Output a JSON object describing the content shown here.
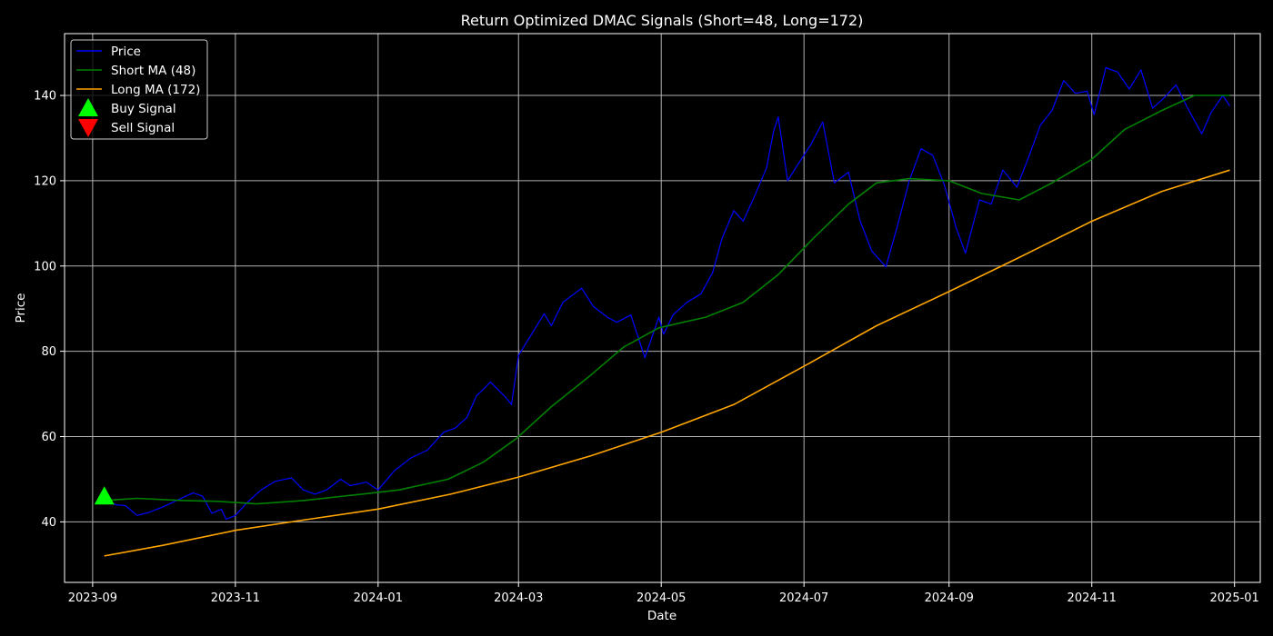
{
  "chart_data": {
    "type": "line",
    "title": "Return Optimized DMAC Signals (Short=48, Long=172)",
    "xlabel": "Date",
    "ylabel": "Price",
    "x_range": [
      "2023-08-20",
      "2025-01-12"
    ],
    "ylim": [
      25.8,
      154.5
    ],
    "grid": true,
    "legend_position": "top-left",
    "x_ticks": [
      "2023-09-01",
      "2023-11-01",
      "2024-01-01",
      "2024-03-01",
      "2024-05-01",
      "2024-07-01",
      "2024-09-01",
      "2024-11-01",
      "2025-01-01"
    ],
    "x_tick_labels": [
      "2023-09",
      "2023-11",
      "2024-01",
      "2024-03",
      "2024-05",
      "2024-07",
      "2024-09",
      "2024-11",
      "2025-01"
    ],
    "y_ticks": [
      40,
      60,
      80,
      100,
      120,
      140
    ],
    "y_tick_labels": [
      "40",
      "60",
      "80",
      "100",
      "120",
      "140"
    ],
    "series": [
      {
        "name": "Price",
        "color": "#0000ff",
        "points": [
          [
            "2023-09-06",
            45.0
          ],
          [
            "2023-09-11",
            44.0
          ],
          [
            "2023-09-15",
            43.8
          ],
          [
            "2023-09-20",
            41.5
          ],
          [
            "2023-09-25",
            42.2
          ],
          [
            "2023-10-01",
            43.5
          ],
          [
            "2023-10-05",
            44.5
          ],
          [
            "2023-10-10",
            45.8
          ],
          [
            "2023-10-14",
            46.8
          ],
          [
            "2023-10-18",
            46.0
          ],
          [
            "2023-10-22",
            42.0
          ],
          [
            "2023-10-26",
            43.0
          ],
          [
            "2023-10-28",
            40.6
          ],
          [
            "2023-11-01",
            41.5
          ],
          [
            "2023-11-06",
            44.5
          ],
          [
            "2023-11-12",
            47.5
          ],
          [
            "2023-11-18",
            49.5
          ],
          [
            "2023-11-25",
            50.3
          ],
          [
            "2023-11-30",
            47.5
          ],
          [
            "2023-12-05",
            46.5
          ],
          [
            "2023-12-10",
            47.5
          ],
          [
            "2023-12-16",
            50.0
          ],
          [
            "2023-12-20",
            48.5
          ],
          [
            "2023-12-27",
            49.3
          ],
          [
            "2024-01-01",
            47.5
          ],
          [
            "2024-01-08",
            52.0
          ],
          [
            "2024-01-15",
            55.0
          ],
          [
            "2024-01-22",
            56.8
          ],
          [
            "2024-01-29",
            61.0
          ],
          [
            "2024-02-03",
            62.0
          ],
          [
            "2024-02-08",
            64.5
          ],
          [
            "2024-02-12",
            69.5
          ],
          [
            "2024-02-18",
            72.8
          ],
          [
            "2024-02-24",
            69.5
          ],
          [
            "2024-02-27",
            67.5
          ],
          [
            "2024-03-01",
            79.0
          ],
          [
            "2024-03-06",
            83.5
          ],
          [
            "2024-03-12",
            88.8
          ],
          [
            "2024-03-15",
            86.0
          ],
          [
            "2024-03-20",
            91.5
          ],
          [
            "2024-03-28",
            94.8
          ],
          [
            "2024-04-02",
            90.5
          ],
          [
            "2024-04-08",
            88.0
          ],
          [
            "2024-04-12",
            86.8
          ],
          [
            "2024-04-18",
            88.5
          ],
          [
            "2024-04-24",
            78.5
          ],
          [
            "2024-04-30",
            88.0
          ],
          [
            "2024-05-02",
            84.0
          ],
          [
            "2024-05-06",
            88.5
          ],
          [
            "2024-05-12",
            91.5
          ],
          [
            "2024-05-18",
            93.5
          ],
          [
            "2024-05-23",
            98.5
          ],
          [
            "2024-05-27",
            106.5
          ],
          [
            "2024-06-01",
            113.0
          ],
          [
            "2024-06-05",
            110.5
          ],
          [
            "2024-06-10",
            116.5
          ],
          [
            "2024-06-15",
            123.0
          ],
          [
            "2024-06-18",
            131.5
          ],
          [
            "2024-06-20",
            135.0
          ],
          [
            "2024-06-24",
            120.0
          ],
          [
            "2024-06-28",
            123.5
          ],
          [
            "2024-07-04",
            128.5
          ],
          [
            "2024-07-09",
            133.8
          ],
          [
            "2024-07-14",
            119.5
          ],
          [
            "2024-07-20",
            122.0
          ],
          [
            "2024-07-25",
            110.5
          ],
          [
            "2024-07-30",
            103.5
          ],
          [
            "2024-08-05",
            99.8
          ],
          [
            "2024-08-10",
            109.5
          ],
          [
            "2024-08-15",
            120.0
          ],
          [
            "2024-08-20",
            127.5
          ],
          [
            "2024-08-25",
            126.0
          ],
          [
            "2024-08-30",
            119.0
          ],
          [
            "2024-09-04",
            109.0
          ],
          [
            "2024-09-08",
            103.0
          ],
          [
            "2024-09-14",
            115.5
          ],
          [
            "2024-09-19",
            114.5
          ],
          [
            "2024-09-24",
            122.5
          ],
          [
            "2024-09-30",
            118.5
          ],
          [
            "2024-10-05",
            125.5
          ],
          [
            "2024-10-10",
            133.0
          ],
          [
            "2024-10-15",
            136.5
          ],
          [
            "2024-10-20",
            143.5
          ],
          [
            "2024-10-25",
            140.5
          ],
          [
            "2024-10-30",
            141.0
          ],
          [
            "2024-11-02",
            135.5
          ],
          [
            "2024-11-07",
            146.5
          ],
          [
            "2024-11-12",
            145.5
          ],
          [
            "2024-11-17",
            141.5
          ],
          [
            "2024-11-22",
            146.0
          ],
          [
            "2024-11-27",
            137.0
          ],
          [
            "2024-12-02",
            139.5
          ],
          [
            "2024-12-07",
            142.5
          ],
          [
            "2024-12-12",
            137.0
          ],
          [
            "2024-12-18",
            131.0
          ],
          [
            "2024-12-22",
            136.0
          ],
          [
            "2024-12-27",
            140.0
          ],
          [
            "2024-12-30",
            137.5
          ]
        ]
      },
      {
        "name": "Short MA (48)",
        "color": "#008000",
        "points": [
          [
            "2023-09-06",
            45.0
          ],
          [
            "2023-09-20",
            45.5
          ],
          [
            "2023-10-10",
            45.0
          ],
          [
            "2023-10-25",
            44.8
          ],
          [
            "2023-11-10",
            44.2
          ],
          [
            "2023-11-30",
            45.0
          ],
          [
            "2023-12-25",
            46.5
          ],
          [
            "2024-01-10",
            47.5
          ],
          [
            "2024-01-31",
            50.0
          ],
          [
            "2024-02-15",
            54.0
          ],
          [
            "2024-02-29",
            59.5
          ],
          [
            "2024-03-15",
            67.0
          ],
          [
            "2024-03-31",
            74.0
          ],
          [
            "2024-04-15",
            81.0
          ],
          [
            "2024-04-30",
            85.5
          ],
          [
            "2024-05-20",
            88.0
          ],
          [
            "2024-06-05",
            91.5
          ],
          [
            "2024-06-20",
            98.0
          ],
          [
            "2024-07-05",
            106.5
          ],
          [
            "2024-07-20",
            114.5
          ],
          [
            "2024-08-01",
            119.5
          ],
          [
            "2024-08-15",
            120.5
          ],
          [
            "2024-09-01",
            120.0
          ],
          [
            "2024-09-15",
            117.0
          ],
          [
            "2024-10-01",
            115.5
          ],
          [
            "2024-10-15",
            119.5
          ],
          [
            "2024-11-01",
            125.0
          ],
          [
            "2024-11-15",
            132.0
          ],
          [
            "2024-12-01",
            136.5
          ],
          [
            "2024-12-15",
            140.0
          ],
          [
            "2024-12-30",
            140.0
          ]
        ]
      },
      {
        "name": "Long MA (172)",
        "color": "#ffa500",
        "points": [
          [
            "2023-09-06",
            32.0
          ],
          [
            "2023-10-01",
            34.5
          ],
          [
            "2023-11-01",
            38.0
          ],
          [
            "2023-12-01",
            40.5
          ],
          [
            "2024-01-01",
            43.0
          ],
          [
            "2024-02-01",
            46.5
          ],
          [
            "2024-03-01",
            50.5
          ],
          [
            "2024-04-01",
            55.5
          ],
          [
            "2024-05-01",
            61.0
          ],
          [
            "2024-06-01",
            67.5
          ],
          [
            "2024-07-01",
            76.5
          ],
          [
            "2024-08-01",
            86.0
          ],
          [
            "2024-09-01",
            94.0
          ],
          [
            "2024-10-01",
            102.0
          ],
          [
            "2024-11-01",
            110.5
          ],
          [
            "2024-12-01",
            117.5
          ],
          [
            "2024-12-30",
            122.5
          ]
        ]
      }
    ],
    "buy_signals": [
      [
        "2023-09-06",
        46.0
      ]
    ],
    "sell_signals": [],
    "legend": [
      {
        "label": "Price",
        "kind": "line",
        "color": "#0000ff"
      },
      {
        "label": "Short MA (48)",
        "kind": "line",
        "color": "#008000"
      },
      {
        "label": "Long MA (172)",
        "kind": "line",
        "color": "#ffa500"
      },
      {
        "label": "Buy Signal",
        "kind": "triangle-up",
        "color": "#00ff00"
      },
      {
        "label": "Sell Signal",
        "kind": "triangle-down",
        "color": "#ff0000"
      }
    ]
  }
}
